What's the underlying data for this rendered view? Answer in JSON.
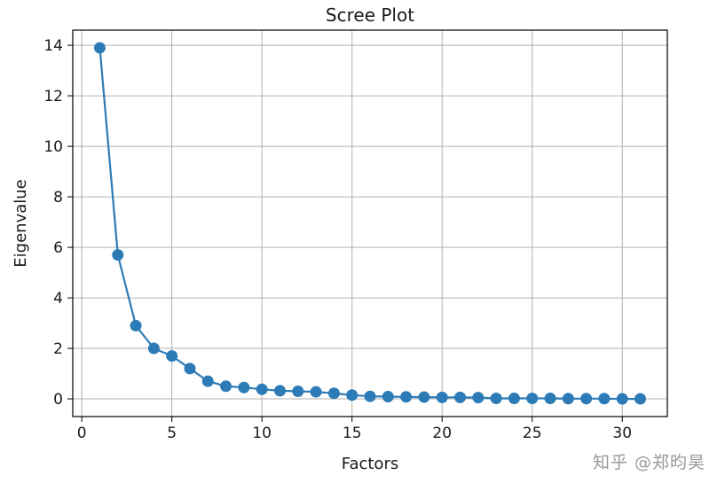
{
  "watermark": "知乎 @郑昀昊",
  "colors": {
    "series": "#2c7bb6",
    "grid": "#b0b0b0",
    "axis": "#000000"
  },
  "chart_data": {
    "type": "line",
    "title": "Scree Plot",
    "xlabel": "Factors",
    "ylabel": "Eigenvalue",
    "xlim": [
      -0.5,
      32.5
    ],
    "ylim": [
      -0.7,
      14.6
    ],
    "xticks": [
      0,
      5,
      10,
      15,
      20,
      25,
      30
    ],
    "yticks": [
      0,
      2,
      4,
      6,
      8,
      10,
      12,
      14
    ],
    "grid": true,
    "markers": true,
    "series": [
      {
        "x": [
          1,
          2,
          3,
          4,
          5,
          6,
          7,
          8,
          9,
          10,
          11,
          12,
          13,
          14,
          15,
          16,
          17,
          18,
          19,
          20,
          21,
          22,
          23,
          24,
          25,
          26,
          27,
          28,
          29,
          30,
          31
        ],
        "values": [
          13.9,
          5.7,
          2.9,
          2.0,
          1.7,
          1.2,
          0.7,
          0.5,
          0.45,
          0.38,
          0.32,
          0.3,
          0.28,
          0.22,
          0.15,
          0.1,
          0.09,
          0.08,
          0.07,
          0.06,
          0.06,
          0.05,
          0.02,
          0.02,
          0.02,
          0.02,
          0.01,
          0.01,
          0.01,
          0.0,
          0.0
        ]
      }
    ]
  }
}
